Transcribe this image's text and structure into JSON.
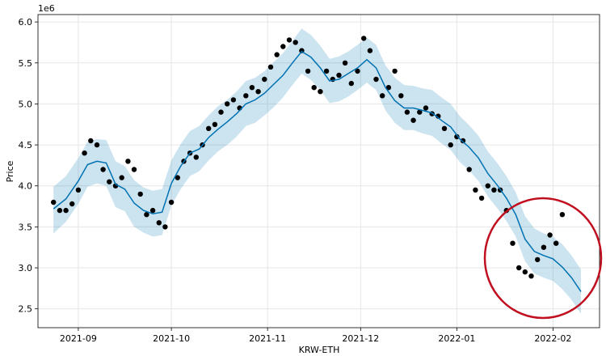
{
  "chart_data": {
    "type": "line",
    "subtype": "forecast-with-uncertainty-band",
    "xlabel": "KRW-ETH",
    "ylabel": "Price",
    "y_multiplier_label": "1e6",
    "xlim": [
      "2021-08-19",
      "2022-02-16"
    ],
    "ylim": [
      2270000,
      6090000
    ],
    "grid": true,
    "x_ticks": [
      {
        "date": "2021-09-01",
        "label": "2021-09"
      },
      {
        "date": "2021-10-01",
        "label": "2021-10"
      },
      {
        "date": "2021-11-01",
        "label": "2021-11"
      },
      {
        "date": "2021-12-01",
        "label": "2021-12"
      },
      {
        "date": "2022-01-01",
        "label": "2022-01"
      },
      {
        "date": "2022-02-01",
        "label": "2022-02"
      }
    ],
    "y_ticks": [
      {
        "value": 2500000,
        "label": "2.5"
      },
      {
        "value": 3000000,
        "label": "3.0"
      },
      {
        "value": 3500000,
        "label": "3.5"
      },
      {
        "value": 4000000,
        "label": "4.0"
      },
      {
        "value": 4500000,
        "label": "4.5"
      },
      {
        "value": 5000000,
        "label": "5.0"
      },
      {
        "value": 5500000,
        "label": "5.5"
      },
      {
        "value": 6000000,
        "label": "6.0"
      }
    ],
    "forecast": {
      "x": [
        "2021-08-24",
        "2021-08-28",
        "2021-09-01",
        "2021-09-04",
        "2021-09-07",
        "2021-09-10",
        "2021-09-13",
        "2021-09-16",
        "2021-09-19",
        "2021-09-22",
        "2021-09-25",
        "2021-09-28",
        "2021-10-01",
        "2021-10-04",
        "2021-10-07",
        "2021-10-10",
        "2021-10-13",
        "2021-10-16",
        "2021-10-19",
        "2021-10-22",
        "2021-10-25",
        "2021-10-28",
        "2021-10-31",
        "2021-11-03",
        "2021-11-06",
        "2021-11-09",
        "2021-11-12",
        "2021-11-15",
        "2021-11-18",
        "2021-11-21",
        "2021-11-24",
        "2021-11-27",
        "2021-11-30",
        "2021-12-03",
        "2021-12-06",
        "2021-12-09",
        "2021-12-12",
        "2021-12-15",
        "2021-12-18",
        "2021-12-21",
        "2021-12-24",
        "2021-12-27",
        "2021-12-30",
        "2022-01-02",
        "2022-01-05",
        "2022-01-08",
        "2022-01-11",
        "2022-01-14",
        "2022-01-17",
        "2022-01-20",
        "2022-01-23",
        "2022-01-26",
        "2022-01-29",
        "2022-02-01",
        "2022-02-04",
        "2022-02-07",
        "2022-02-10"
      ],
      "yhat": [
        3720000,
        3840000,
        4060000,
        4260000,
        4300000,
        4280000,
        4020000,
        3960000,
        3790000,
        3700000,
        3660000,
        3680000,
        4030000,
        4240000,
        4400000,
        4450000,
        4590000,
        4690000,
        4780000,
        4880000,
        5000000,
        5050000,
        5130000,
        5240000,
        5350000,
        5500000,
        5640000,
        5570000,
        5440000,
        5280000,
        5300000,
        5370000,
        5440000,
        5540000,
        5440000,
        5200000,
        5040000,
        4950000,
        4950000,
        4920000,
        4890000,
        4800000,
        4720000,
        4570000,
        4470000,
        4340000,
        4150000,
        4010000,
        3850000,
        3650000,
        3350000,
        3200000,
        3150000,
        3110000,
        3010000,
        2880000,
        2710000
      ],
      "lower": [
        3420000,
        3560000,
        3780000,
        3990000,
        4030000,
        4000000,
        3740000,
        3690000,
        3500000,
        3430000,
        3380000,
        3400000,
        3760000,
        3960000,
        4120000,
        4180000,
        4310000,
        4420000,
        4500000,
        4600000,
        4730000,
        4770000,
        4860000,
        4960000,
        5080000,
        5230000,
        5370000,
        5290000,
        5170000,
        5010000,
        5030000,
        5090000,
        5170000,
        5260000,
        5170000,
        4920000,
        4770000,
        4680000,
        4680000,
        4640000,
        4610000,
        4520000,
        4440000,
        4290000,
        4190000,
        4060000,
        3870000,
        3730000,
        3570000,
        3380000,
        3080000,
        2930000,
        2880000,
        2840000,
        2740000,
        2610000,
        2440000
      ],
      "upper": [
        3990000,
        4120000,
        4340000,
        4540000,
        4570000,
        4560000,
        4300000,
        4240000,
        4070000,
        3980000,
        3940000,
        3960000,
        4310000,
        4510000,
        4670000,
        4730000,
        4860000,
        4970000,
        5050000,
        5150000,
        5280000,
        5320000,
        5400000,
        5510000,
        5620000,
        5770000,
        5920000,
        5840000,
        5710000,
        5550000,
        5580000,
        5640000,
        5720000,
        5810000,
        5720000,
        5470000,
        5320000,
        5230000,
        5220000,
        5190000,
        5170000,
        5080000,
        5000000,
        4850000,
        4740000,
        4610000,
        4420000,
        4280000,
        4120000,
        3920000,
        3630000,
        3480000,
        3420000,
        3380000,
        3290000,
        3150000,
        2980000
      ]
    },
    "observed": {
      "x": [
        "2021-08-24",
        "2021-08-26",
        "2021-08-28",
        "2021-08-30",
        "2021-09-01",
        "2021-09-03",
        "2021-09-05",
        "2021-09-07",
        "2021-09-09",
        "2021-09-11",
        "2021-09-13",
        "2021-09-15",
        "2021-09-17",
        "2021-09-19",
        "2021-09-21",
        "2021-09-23",
        "2021-09-25",
        "2021-09-27",
        "2021-09-29",
        "2021-10-01",
        "2021-10-03",
        "2021-10-05",
        "2021-10-07",
        "2021-10-09",
        "2021-10-11",
        "2021-10-13",
        "2021-10-15",
        "2021-10-17",
        "2021-10-19",
        "2021-10-21",
        "2021-10-23",
        "2021-10-25",
        "2021-10-27",
        "2021-10-29",
        "2021-10-31",
        "2021-11-02",
        "2021-11-04",
        "2021-11-06",
        "2021-11-08",
        "2021-11-10",
        "2021-11-12",
        "2021-11-14",
        "2021-11-16",
        "2021-11-18",
        "2021-11-20",
        "2021-11-22",
        "2021-11-24",
        "2021-11-26",
        "2021-11-28",
        "2021-11-30",
        "2021-12-02",
        "2021-12-04",
        "2021-12-06",
        "2021-12-08",
        "2021-12-10",
        "2021-12-12",
        "2021-12-14",
        "2021-12-16",
        "2021-12-18",
        "2021-12-20",
        "2021-12-22",
        "2021-12-24",
        "2021-12-26",
        "2021-12-28",
        "2021-12-30",
        "2022-01-01",
        "2022-01-03",
        "2022-01-05",
        "2022-01-07",
        "2022-01-09",
        "2022-01-11",
        "2022-01-13",
        "2022-01-15",
        "2022-01-17",
        "2022-01-19",
        "2022-01-21",
        "2022-01-23",
        "2022-01-25",
        "2022-01-27",
        "2022-01-29",
        "2022-01-31",
        "2022-02-02",
        "2022-02-04"
      ],
      "y": [
        3800000,
        3700000,
        3700000,
        3780000,
        3950000,
        4400000,
        4550000,
        4500000,
        4200000,
        4050000,
        4000000,
        4100000,
        4300000,
        4200000,
        3900000,
        3650000,
        3700000,
        3550000,
        3500000,
        3800000,
        4100000,
        4300000,
        4400000,
        4350000,
        4500000,
        4700000,
        4750000,
        4900000,
        5000000,
        5050000,
        4950000,
        5100000,
        5200000,
        5150000,
        5300000,
        5450000,
        5600000,
        5700000,
        5780000,
        5750000,
        5650000,
        5400000,
        5200000,
        5150000,
        5400000,
        5300000,
        5350000,
        5500000,
        5250000,
        5400000,
        5800000,
        5650000,
        5300000,
        5100000,
        5200000,
        5400000,
        5100000,
        4900000,
        4800000,
        4900000,
        4950000,
        4880000,
        4850000,
        4700000,
        4500000,
        4600000,
        4550000,
        4200000,
        3950000,
        3850000,
        4000000,
        3950000,
        3950000,
        3700000,
        3300000,
        3000000,
        2950000,
        2900000,
        3100000,
        3250000,
        3400000,
        3300000,
        3650000
      ]
    },
    "annotation": {
      "type": "circle",
      "color": "#c01020"
    }
  }
}
